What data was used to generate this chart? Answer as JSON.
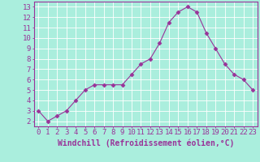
{
  "x": [
    0,
    1,
    2,
    3,
    4,
    5,
    6,
    7,
    8,
    9,
    10,
    11,
    12,
    13,
    14,
    15,
    16,
    17,
    18,
    19,
    20,
    21,
    22,
    23
  ],
  "y": [
    3.0,
    2.0,
    2.5,
    3.0,
    4.0,
    5.0,
    5.5,
    5.5,
    5.5,
    5.5,
    6.5,
    7.5,
    8.0,
    9.5,
    11.5,
    12.5,
    13.0,
    12.5,
    10.5,
    9.0,
    7.5,
    6.5,
    6.0,
    5.0
  ],
  "line_color": "#993399",
  "marker": "D",
  "marker_size": 2.5,
  "bg_color": "#aaeedd",
  "grid_color": "#ffffff",
  "xlabel": "Windchill (Refroidissement éolien,°C)",
  "xlabel_fontsize": 7,
  "ylabel_ticks": [
    2,
    3,
    4,
    5,
    6,
    7,
    8,
    9,
    10,
    11,
    12,
    13
  ],
  "xlim": [
    -0.5,
    23.5
  ],
  "ylim": [
    1.5,
    13.5
  ],
  "tick_fontsize": 6.5,
  "axis_label_color": "#993399",
  "spine_color": "#993399"
}
